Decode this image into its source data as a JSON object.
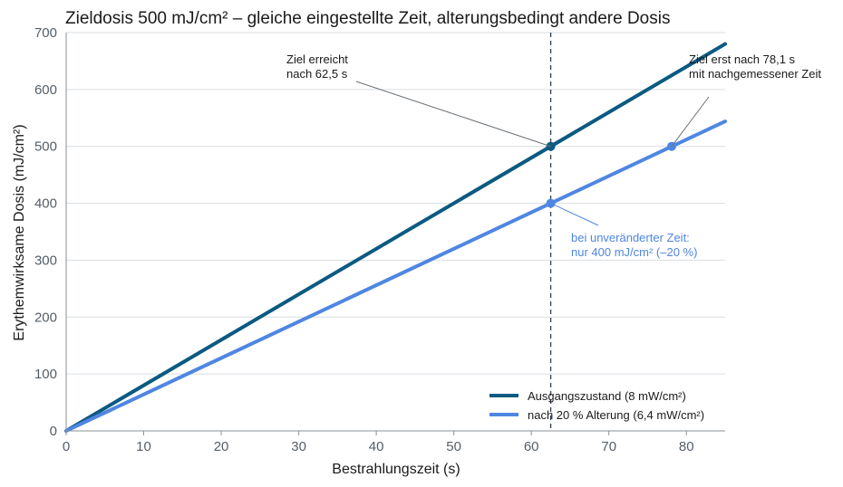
{
  "chart_data": {
    "type": "line",
    "title": "Zieldosis 500 mJ/cm² – gleiche eingestellte Zeit, alterungsbedingt andere Dosis",
    "xlabel": "Bestrahlungszeit (s)",
    "ylabel": "Erythemwirksame Dosis (mJ/cm²)",
    "xlim": [
      0,
      85
    ],
    "ylim": [
      0,
      700
    ],
    "xticks": [
      0,
      10,
      20,
      30,
      40,
      50,
      60,
      70,
      80
    ],
    "yticks": [
      0,
      100,
      200,
      300,
      400,
      500,
      600,
      700
    ],
    "grid": "horizontal",
    "legend_position": "bottom-right",
    "series": [
      {
        "name": "Ausgangszustand (8 mW/cm²)",
        "color": "#0b5a82",
        "x": [
          0,
          85
        ],
        "y": [
          0,
          680
        ]
      },
      {
        "name": "nach 20 % Alterung (6,4 mW/cm²)",
        "color": "#4f86e2",
        "x": [
          0,
          85
        ],
        "y": [
          0,
          544
        ]
      }
    ],
    "reference_line": {
      "x": 62.5,
      "style": "dashed",
      "color": "#2e3b4e"
    },
    "points": [
      {
        "x": 62.5,
        "y": 500,
        "color": "#0b5a82"
      },
      {
        "x": 62.5,
        "y": 400,
        "color": "#4f86e2"
      },
      {
        "x": 78.1,
        "y": 500,
        "color": "#4f86e2"
      }
    ],
    "annotations": [
      {
        "lines": [
          "Ziel erreicht",
          "nach 62,5 s"
        ],
        "target": [
          62.5,
          500
        ],
        "color": "#1a1a1a"
      },
      {
        "lines": [
          "Ziel erst nach 78,1 s",
          "mit nachgemessener Zeit"
        ],
        "target": [
          78.1,
          500
        ],
        "color": "#1a1a1a"
      },
      {
        "lines": [
          "bei unveränderter Zeit:",
          "nur 400 mJ/cm² (–20 %)"
        ],
        "target": [
          62.5,
          400
        ],
        "color": "#4f86e2"
      }
    ]
  }
}
